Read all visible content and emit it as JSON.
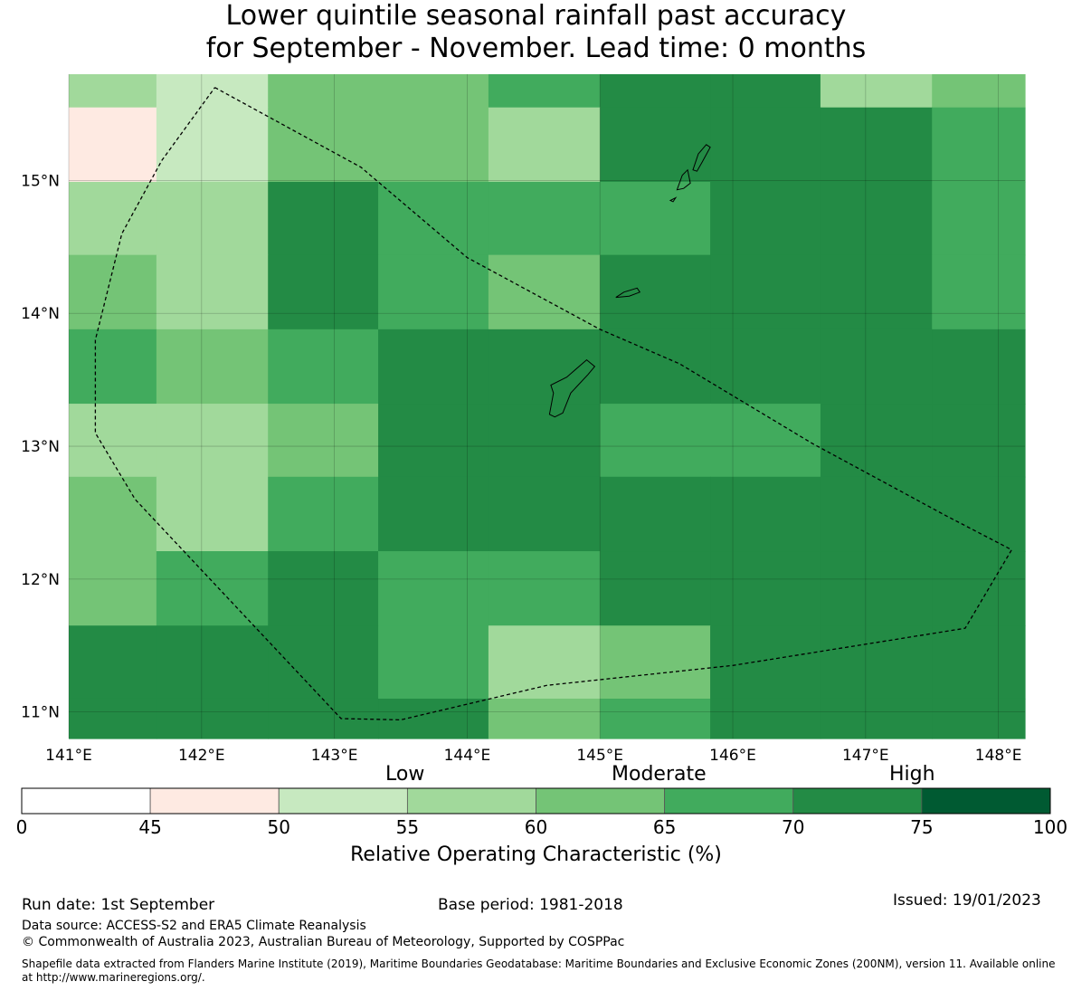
{
  "title": {
    "line1": "Lower quintile seasonal rainfall past accuracy",
    "line2": "for September - November. Lead time: 0 months"
  },
  "map": {
    "lon_range": [
      141.0,
      148.2
    ],
    "lat_range": [
      10.8,
      15.8
    ],
    "lon_ticks": [
      {
        "value": 141,
        "label": "141°E"
      },
      {
        "value": 142,
        "label": "142°E"
      },
      {
        "value": 143,
        "label": "143°E"
      },
      {
        "value": 144,
        "label": "144°E"
      },
      {
        "value": 145,
        "label": "145°E"
      },
      {
        "value": 146,
        "label": "146°E"
      },
      {
        "value": 147,
        "label": "147°E"
      },
      {
        "value": 148,
        "label": "148°E"
      }
    ],
    "lat_ticks": [
      {
        "value": 15,
        "label": "15°N"
      },
      {
        "value": 14,
        "label": "14°N"
      },
      {
        "value": 13,
        "label": "13°N"
      },
      {
        "value": 12,
        "label": "12°N"
      },
      {
        "value": 11,
        "label": "11°N"
      }
    ],
    "grid_lines": true,
    "grid_lon_edges": [
      141.0,
      141.66,
      142.5,
      143.33,
      144.16,
      145.0,
      145.83,
      146.66,
      147.5,
      148.2
    ],
    "grid_lat_edges": [
      15.8,
      15.55,
      14.99,
      14.44,
      13.88,
      13.32,
      12.77,
      12.21,
      11.65,
      11.1,
      10.8
    ],
    "cells_class": [
      [
        3,
        2,
        4,
        4,
        5,
        6,
        6,
        3,
        4
      ],
      [
        1,
        2,
        4,
        4,
        3,
        6,
        6,
        6,
        5
      ],
      [
        3,
        3,
        6,
        5,
        5,
        5,
        6,
        6,
        5
      ],
      [
        4,
        3,
        6,
        5,
        4,
        6,
        6,
        6,
        5
      ],
      [
        5,
        4,
        5,
        6,
        6,
        6,
        6,
        6,
        6
      ],
      [
        3,
        3,
        4,
        6,
        6,
        5,
        5,
        6,
        6
      ],
      [
        4,
        3,
        5,
        6,
        6,
        6,
        6,
        6,
        6
      ],
      [
        4,
        5,
        6,
        5,
        5,
        6,
        6,
        6,
        6
      ],
      [
        6,
        6,
        6,
        5,
        3,
        4,
        6,
        6,
        6
      ],
      [
        6,
        6,
        6,
        6,
        4,
        5,
        6,
        6,
        6
      ]
    ],
    "eez_boundary": [
      [
        142.1,
        15.7
      ],
      [
        143.2,
        15.1
      ],
      [
        144.0,
        14.42
      ],
      [
        145.0,
        13.88
      ],
      [
        145.6,
        13.62
      ],
      [
        146.6,
        13.02
      ],
      [
        147.6,
        12.48
      ],
      [
        148.1,
        12.22
      ],
      [
        147.75,
        11.63
      ],
      [
        146.0,
        11.35
      ],
      [
        144.6,
        11.2
      ],
      [
        143.5,
        10.94
      ],
      [
        143.05,
        10.95
      ],
      [
        141.5,
        12.6
      ],
      [
        141.2,
        13.1
      ],
      [
        141.2,
        13.8
      ],
      [
        141.4,
        14.6
      ],
      [
        141.7,
        15.15
      ],
      [
        142.1,
        15.7
      ]
    ],
    "islands": [
      {
        "name": "Guam",
        "coords": [
          [
            144.62,
            13.24
          ],
          [
            144.65,
            13.4
          ],
          [
            144.63,
            13.46
          ],
          [
            144.75,
            13.52
          ],
          [
            144.9,
            13.65
          ],
          [
            144.96,
            13.6
          ],
          [
            144.91,
            13.54
          ],
          [
            144.78,
            13.4
          ],
          [
            144.72,
            13.25
          ],
          [
            144.66,
            13.22
          ]
        ]
      },
      {
        "name": "Rota",
        "coords": [
          [
            145.12,
            14.12
          ],
          [
            145.18,
            14.16
          ],
          [
            145.28,
            14.19
          ],
          [
            145.3,
            14.16
          ],
          [
            145.22,
            14.13
          ]
        ]
      },
      {
        "name": "Tinian",
        "coords": [
          [
            145.58,
            14.93
          ],
          [
            145.62,
            15.04
          ],
          [
            145.66,
            15.08
          ],
          [
            145.68,
            14.98
          ],
          [
            145.63,
            14.94
          ]
        ]
      },
      {
        "name": "Saipan",
        "coords": [
          [
            145.7,
            15.08
          ],
          [
            145.74,
            15.2
          ],
          [
            145.8,
            15.27
          ],
          [
            145.83,
            15.25
          ],
          [
            145.77,
            15.14
          ],
          [
            145.73,
            15.07
          ]
        ]
      },
      {
        "name": "Aguijan",
        "coords": [
          [
            145.53,
            14.85
          ],
          [
            145.57,
            14.87
          ],
          [
            145.55,
            14.84
          ]
        ]
      }
    ]
  },
  "colorbar": {
    "ticks": [
      "0",
      "45",
      "50",
      "55",
      "60",
      "65",
      "70",
      "75",
      "100"
    ],
    "colors": [
      "#ffffff",
      "#feeae2",
      "#c7e9c0",
      "#a1d99b",
      "#74c476",
      "#41ab5d",
      "#238b45",
      "#005a32"
    ],
    "categories": {
      "low": "Low",
      "moderate": "Moderate",
      "high": "High"
    },
    "label": "Relative Operating Characteristic (%)"
  },
  "footer": {
    "run_date": "Run date: 1st September",
    "base_period": "Base period: 1981-2018",
    "issued": "Issued: 19/01/2023",
    "data_source": "Data source: ACCESS-S2 and ERA5 Climate Reanalysis",
    "copyright": "© Commonwealth of Australia 2023, Australian Bureau of Meteorology, Supported by COSPPac",
    "shapefile": "Shapefile data extracted from Flanders Marine Institute (2019), Maritime Boundaries Geodatabase: Maritime Boundaries and Exclusive Economic Zones (200NM), version 11. Available online at http://www.marineregions.org/."
  }
}
